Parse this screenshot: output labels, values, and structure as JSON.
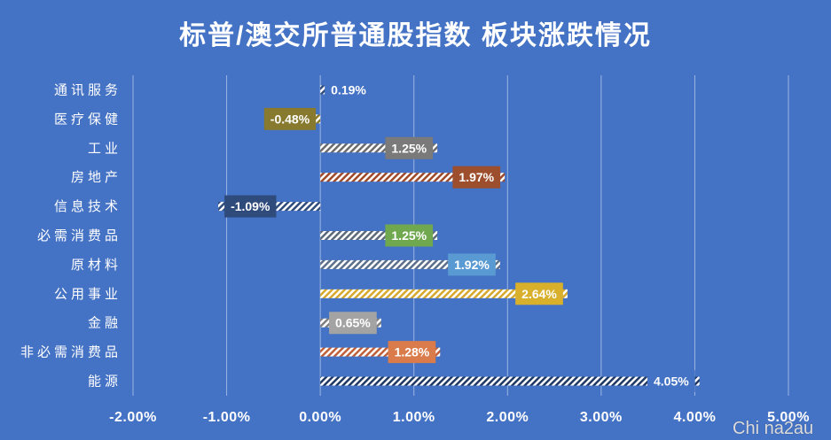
{
  "watermark": "Chi na2au",
  "colors": {
    "background": "#4472C4",
    "text": "#FFFFFF",
    "gridline": "#9DB5E2"
  },
  "chart_data": {
    "type": "bar",
    "orientation": "horizontal",
    "title": "标普/澳交所普通股指数 板块涨跌情况",
    "xlabel": "",
    "ylabel": "",
    "categories": [
      "通讯服务",
      "医疗保健",
      "工业",
      "房地产",
      "信息技术",
      "必需消费品",
      "原材料",
      "公用事业",
      "金融",
      "非必需消费品",
      "能源"
    ],
    "values": [
      0.19,
      -0.48,
      1.25,
      1.97,
      -1.09,
      1.25,
      1.92,
      2.64,
      0.65,
      1.28,
      4.05
    ],
    "xlim": [
      -2,
      5
    ],
    "x_ticks": [
      -2,
      -1,
      0,
      1,
      2,
      3,
      4,
      5
    ],
    "grid": true,
    "legend": "none",
    "data_labels": true,
    "bar_colors": [
      "#2F4B7C",
      "#8A7A2A",
      "#6B6B6B",
      "#9E4A2A",
      "#2F4B7C",
      "#5A6A7A",
      "#5B6F8A",
      "#D6A92C",
      "#7F7F7F",
      "#C0603A",
      "#1F3864"
    ],
    "label_colors": [
      "#4472C4",
      "#877A2F",
      "#7A7A7A",
      "#9D4E2D",
      "#2F4B7C",
      "#6FA84E",
      "#5A9AD2",
      "#D8B02C",
      "#A3A3A3",
      "#DA7B4C",
      "#4472C4"
    ]
  }
}
